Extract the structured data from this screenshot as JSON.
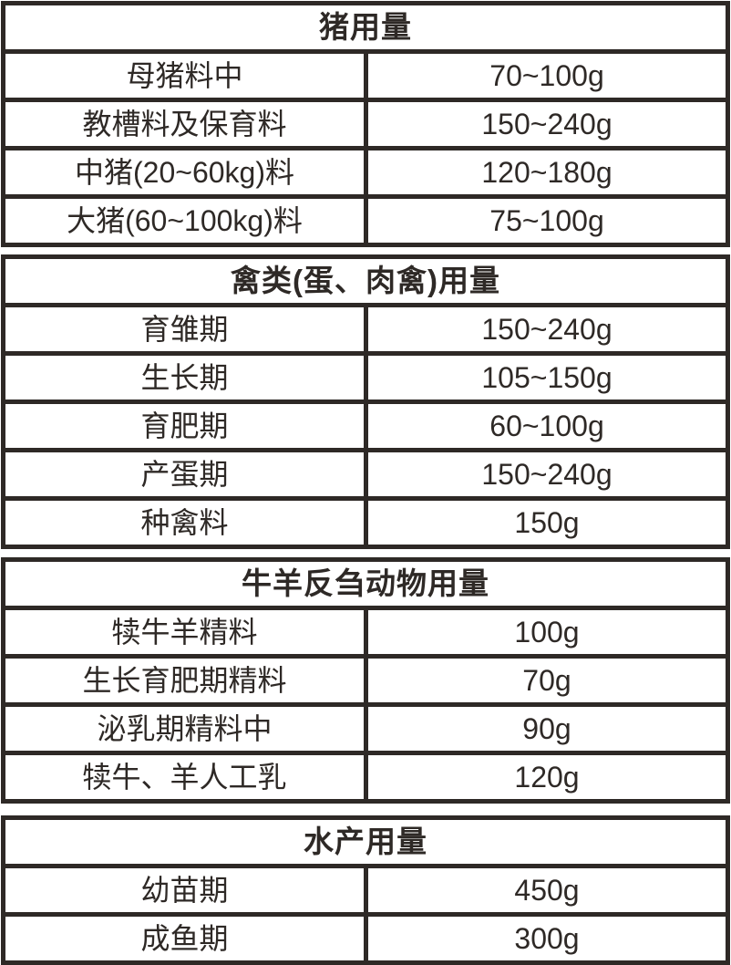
{
  "colors": {
    "ink": "#2e2926",
    "background": "#ffffff"
  },
  "tables": [
    {
      "id": "pig",
      "title": "猪用量",
      "rows": [
        {
          "label": "母猪料中",
          "value": "70~100g"
        },
        {
          "label": "教槽料及保育料",
          "value": "150~240g"
        },
        {
          "label": "中猪(20~60kg)料",
          "value": "120~180g"
        },
        {
          "label": "大猪(60~100kg)料",
          "value": "75~100g"
        }
      ]
    },
    {
      "id": "poultry",
      "title": "禽类(蛋、肉禽)用量",
      "rows": [
        {
          "label": "育雏期",
          "value": "150~240g"
        },
        {
          "label": "生长期",
          "value": "105~150g"
        },
        {
          "label": "育肥期",
          "value": "60~100g"
        },
        {
          "label": "产蛋期",
          "value": "150~240g"
        },
        {
          "label": "种禽料",
          "value": "150g"
        }
      ]
    },
    {
      "id": "ruminant",
      "title": "牛羊反刍动物用量",
      "rows": [
        {
          "label": "犊牛羊精料",
          "value": "100g"
        },
        {
          "label": "生长育肥期精料",
          "value": "70g"
        },
        {
          "label": "泌乳期精料中",
          "value": "90g"
        },
        {
          "label": "犊牛、羊人工乳",
          "value": "120g"
        }
      ]
    },
    {
      "id": "aquatic",
      "title": "水产用量",
      "rows": [
        {
          "label": "幼苗期",
          "value": "450g"
        },
        {
          "label": "成鱼期",
          "value": "300g"
        }
      ]
    }
  ]
}
